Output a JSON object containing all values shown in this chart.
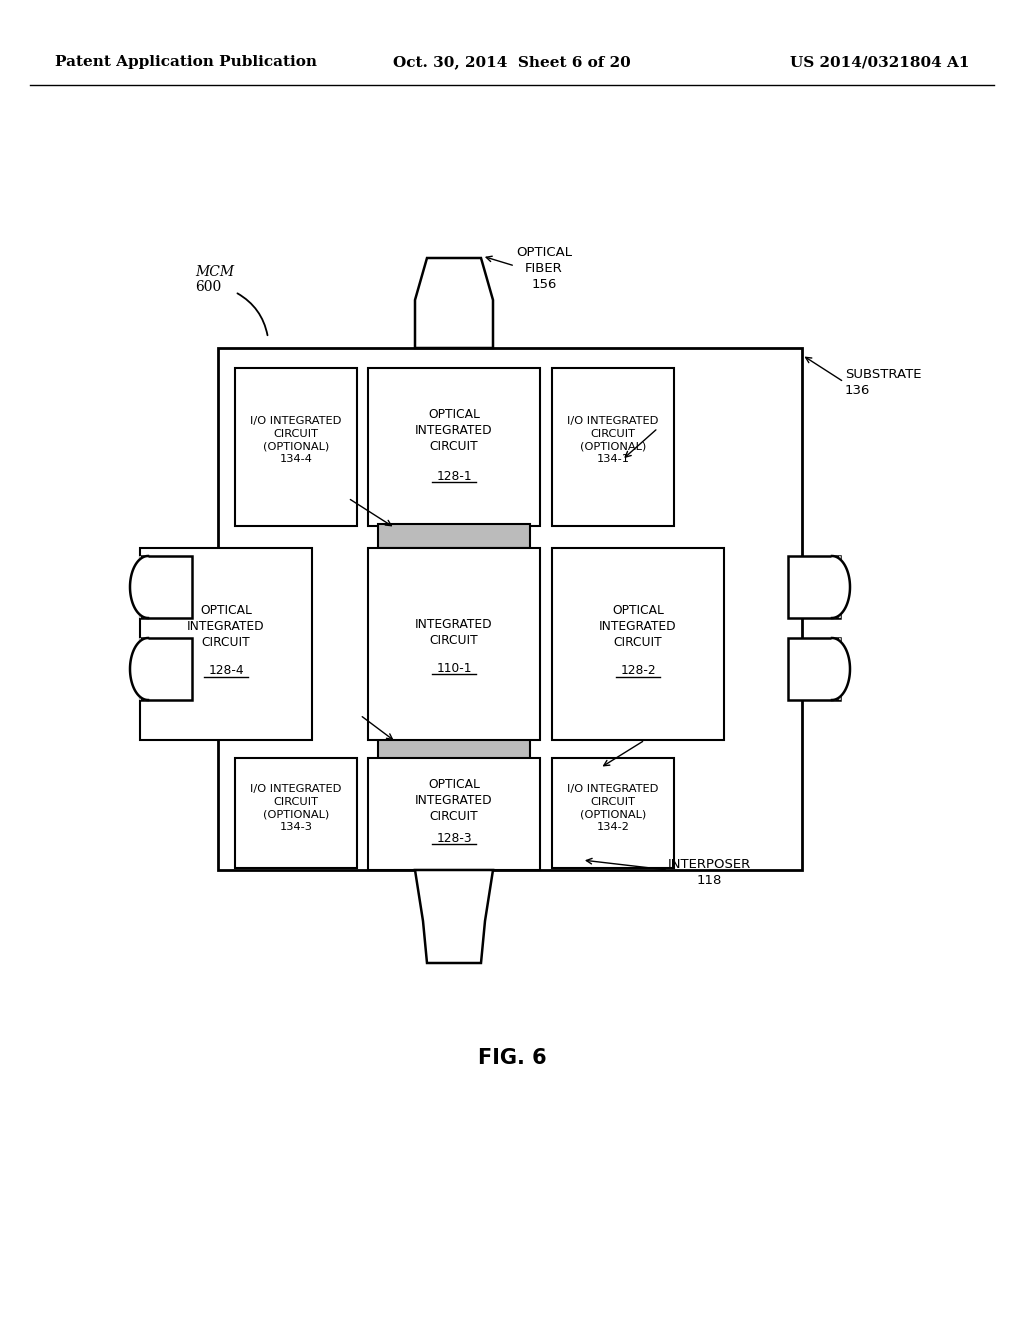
{
  "bg_color": "#ffffff",
  "header_left": "Patent Application Publication",
  "header_center": "Oct. 30, 2014  Sheet 6 of 20",
  "header_right": "US 2014/0321804 A1",
  "fig_label": "FIG. 6"
}
